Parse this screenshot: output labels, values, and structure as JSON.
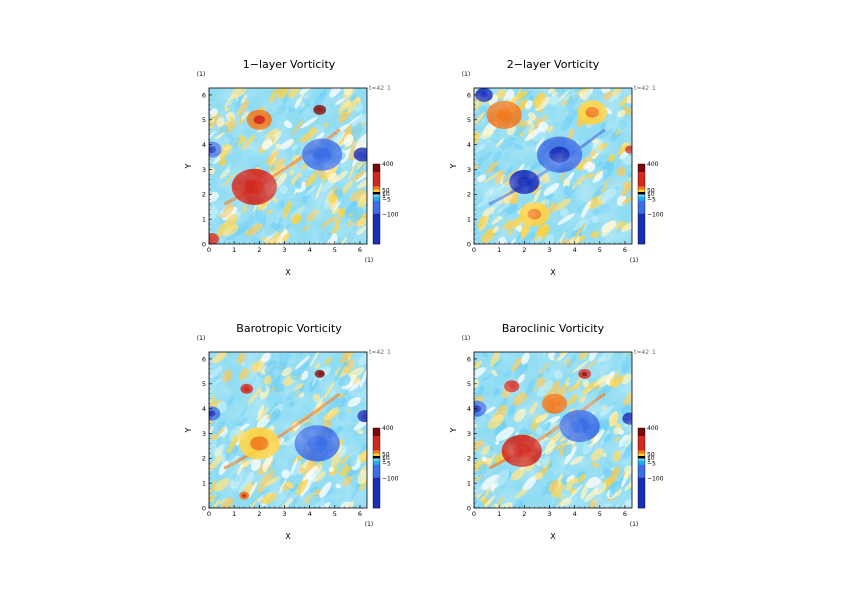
{
  "chart_data": [
    {
      "type": "heatmap",
      "title": "1−layer Vorticity",
      "xlabel": "X",
      "ylabel": "Y",
      "x_unit": "(1)",
      "y_unit": "(1)",
      "xlim": [
        0,
        6.28
      ],
      "ylim": [
        0,
        6.28
      ],
      "xticks": [
        "0",
        "1",
        "2",
        "3",
        "4",
        "5",
        "6"
      ],
      "yticks": [
        "0",
        "1",
        "2",
        "3",
        "4",
        "5",
        "6"
      ],
      "time_label": "t=42",
      "time_suffix": "1",
      "colorbar": {
        "labels": [
          "400",
          "50",
          "10",
          "1",
          "−5",
          "−100"
        ]
      },
      "features": [
        {
          "x": 1.8,
          "y": 2.3,
          "value": 120,
          "r": 0.9
        },
        {
          "x": 4.4,
          "y": 5.4,
          "value": 300,
          "r": 0.25
        },
        {
          "x": 2.0,
          "y": 5.0,
          "value": 90,
          "r": 0.5
        },
        {
          "x": 6.1,
          "y": 3.6,
          "value": -120,
          "r": 0.35
        },
        {
          "x": 0.1,
          "y": 3.8,
          "value": -90,
          "r": 0.4
        },
        {
          "x": 4.5,
          "y": 3.6,
          "value": -60,
          "r": 0.8
        },
        {
          "x": 0.1,
          "y": 0.2,
          "value": 150,
          "r": 0.3
        }
      ]
    },
    {
      "type": "heatmap",
      "title": "2−layer Vorticity",
      "xlabel": "X",
      "ylabel": "Y",
      "x_unit": "(1)",
      "y_unit": "(1)",
      "xlim": [
        0,
        6.28
      ],
      "ylim": [
        0,
        6.28
      ],
      "xticks": [
        "0",
        "1",
        "2",
        "3",
        "4",
        "5",
        "6"
      ],
      "yticks": [
        "0",
        "1",
        "2",
        "3",
        "4",
        "5",
        "6"
      ],
      "time_label": "t=42",
      "time_suffix": "1",
      "colorbar": {
        "labels": [
          "400",
          "50",
          "10",
          "1",
          "−5",
          "−100"
        ]
      },
      "features": [
        {
          "x": 2.0,
          "y": 2.5,
          "value": -140,
          "r": 0.6
        },
        {
          "x": 3.4,
          "y": 3.6,
          "value": -70,
          "r": 0.9
        },
        {
          "x": 0.4,
          "y": 6.0,
          "value": -120,
          "r": 0.35
        },
        {
          "x": 6.2,
          "y": 3.8,
          "value": 150,
          "r": 0.2
        },
        {
          "x": 1.2,
          "y": 5.2,
          "value": 60,
          "r": 0.7
        },
        {
          "x": 4.7,
          "y": 5.3,
          "value": 40,
          "r": 0.6
        },
        {
          "x": 2.4,
          "y": 1.2,
          "value": 35,
          "r": 0.6
        }
      ]
    },
    {
      "type": "heatmap",
      "title": "Barotropic Vorticity",
      "xlabel": "X",
      "ylabel": "Y",
      "x_unit": "(1)",
      "y_unit": "(1)",
      "xlim": [
        0,
        6.28
      ],
      "ylim": [
        0,
        6.28
      ],
      "xticks": [
        "0",
        "1",
        "2",
        "3",
        "4",
        "5",
        "6"
      ],
      "yticks": [
        "0",
        "1",
        "2",
        "3",
        "4",
        "5",
        "6"
      ],
      "time_label": "t=42",
      "time_suffix": "1",
      "colorbar": {
        "labels": [
          "400",
          "50",
          "10",
          "1",
          "−5",
          "−100"
        ]
      },
      "features": [
        {
          "x": 4.4,
          "y": 5.4,
          "value": 280,
          "r": 0.2
        },
        {
          "x": 1.5,
          "y": 4.8,
          "value": 130,
          "r": 0.25
        },
        {
          "x": 6.2,
          "y": 3.7,
          "value": -110,
          "r": 0.3
        },
        {
          "x": 0.1,
          "y": 3.8,
          "value": -80,
          "r": 0.35
        },
        {
          "x": 1.4,
          "y": 0.5,
          "value": 110,
          "r": 0.2
        },
        {
          "x": 2.0,
          "y": 2.6,
          "value": 40,
          "r": 0.8
        },
        {
          "x": 4.3,
          "y": 2.6,
          "value": -40,
          "r": 0.9
        }
      ]
    },
    {
      "type": "heatmap",
      "title": "Baroclinic Vorticity",
      "xlabel": "X",
      "ylabel": "Y",
      "x_unit": "(1)",
      "y_unit": "(1)",
      "xlim": [
        0,
        6.28
      ],
      "ylim": [
        0,
        6.28
      ],
      "xticks": [
        "0",
        "1",
        "2",
        "3",
        "4",
        "5",
        "6"
      ],
      "yticks": [
        "0",
        "1",
        "2",
        "3",
        "4",
        "5",
        "6"
      ],
      "time_label": "t=42",
      "time_suffix": "1",
      "colorbar": {
        "labels": [
          "400",
          "50",
          "10",
          "1",
          "−5",
          "−100"
        ]
      },
      "features": [
        {
          "x": 1.9,
          "y": 2.3,
          "value": 140,
          "r": 0.8
        },
        {
          "x": 4.4,
          "y": 5.4,
          "value": 200,
          "r": 0.25
        },
        {
          "x": 1.5,
          "y": 4.9,
          "value": 120,
          "r": 0.3
        },
        {
          "x": 6.2,
          "y": 3.6,
          "value": -120,
          "r": 0.3
        },
        {
          "x": 0.1,
          "y": 4.0,
          "value": -90,
          "r": 0.4
        },
        {
          "x": 4.2,
          "y": 3.3,
          "value": -50,
          "r": 0.8
        },
        {
          "x": 3.2,
          "y": 4.2,
          "value": 60,
          "r": 0.5
        }
      ]
    }
  ],
  "colors": {
    "deep_blue": "#1a2fb8",
    "blue": "#3c6ee6",
    "light_blue": "#6fd0f5",
    "pale": "#fff3b8",
    "yellow": "#ffd23c",
    "orange": "#f07a1e",
    "red": "#d2281e",
    "dark_red": "#7a0a0a"
  }
}
